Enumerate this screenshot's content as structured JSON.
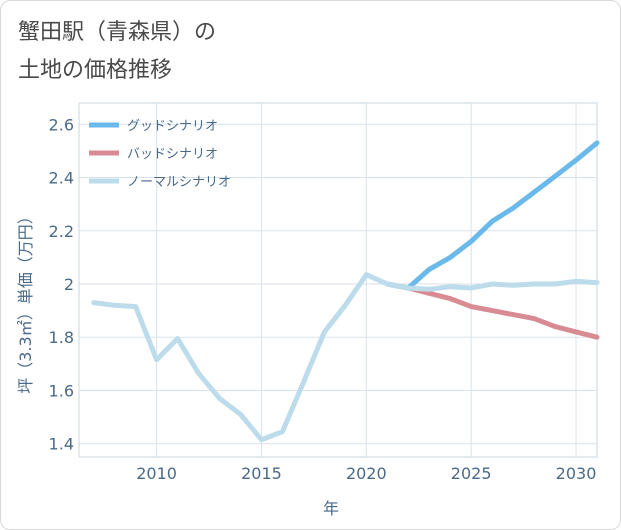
{
  "chart_data": {
    "type": "line",
    "title": "蟹田駅（青森県）の\n土地の価格推移",
    "xlabel": "年",
    "ylabel": "坪（3.3㎡）単価（万円）",
    "xlim": [
      2006.3,
      2031
    ],
    "ylim": [
      1.35,
      2.68
    ],
    "xticks": [
      2010,
      2015,
      2020,
      2025,
      2030
    ],
    "yticks": [
      1.4,
      1.6,
      1.8,
      2.0,
      2.2,
      2.4,
      2.6
    ],
    "ytick_labels": [
      "1.4",
      "1.6",
      "1.8",
      "2",
      "2.2",
      "2.4",
      "2.6"
    ],
    "legend_position": "top-left",
    "series": [
      {
        "name": "グッドシナリオ",
        "color": "#6bb9ea",
        "x": [
          2021,
          2022,
          2023,
          2024,
          2025,
          2026,
          2027,
          2028,
          2029,
          2030,
          2031
        ],
        "y": [
          2.0,
          1.985,
          2.055,
          2.1,
          2.16,
          2.235,
          2.285,
          2.345,
          2.405,
          2.465,
          2.53
        ]
      },
      {
        "name": "バッドシナリオ",
        "color": "#d98b94",
        "x": [
          2021,
          2022,
          2023,
          2024,
          2025,
          2026,
          2027,
          2028,
          2029,
          2030,
          2031
        ],
        "y": [
          2.0,
          1.985,
          1.965,
          1.945,
          1.915,
          1.9,
          1.885,
          1.87,
          1.84,
          1.82,
          1.8
        ]
      },
      {
        "name": "ノーマルシナリオ",
        "color": "#bcdcec",
        "x": [
          2007,
          2008,
          2009,
          2010,
          2011,
          2012,
          2013,
          2014,
          2015,
          2016,
          2017,
          2018,
          2019,
          2020,
          2021,
          2022,
          2023,
          2024,
          2025,
          2026,
          2027,
          2028,
          2029,
          2030,
          2031
        ],
        "y": [
          1.93,
          1.92,
          1.915,
          1.715,
          1.795,
          1.665,
          1.57,
          1.51,
          1.415,
          1.445,
          1.63,
          1.82,
          1.92,
          2.035,
          2.0,
          1.985,
          1.98,
          1.99,
          1.985,
          2.0,
          1.995,
          2.0,
          2.0,
          2.01,
          2.005
        ]
      }
    ]
  }
}
